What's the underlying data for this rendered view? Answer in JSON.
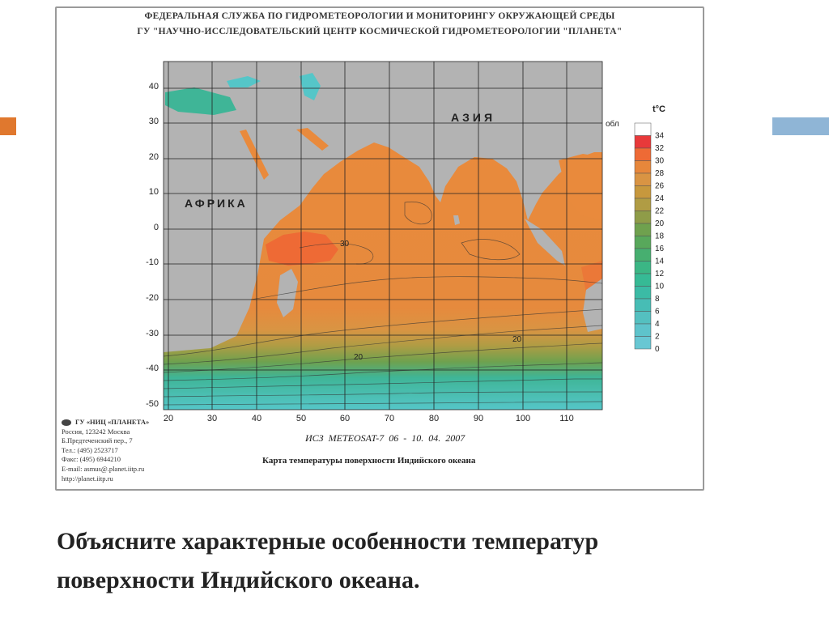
{
  "header": {
    "line1": "ФЕДЕРАЛЬНАЯ СЛУЖБА ПО ГИДРОМЕТЕОРОЛОГИИ И МОНИТОРИНГУ ОКРУЖАЮЩЕЙ СРЕДЫ",
    "line2": "ГУ \"НАУЧНО-ИССЛЕДОВАТЕЛЬСКИЙ ЦЕНТР КОСМИЧЕСКОЙ ГИДРОМЕТЕОРОЛОГИИ \"ПЛАНЕТА\""
  },
  "map": {
    "lat_labels": [
      "40",
      "30",
      "20",
      "10",
      "0",
      "-10",
      "-20",
      "-30",
      "-40",
      "-50"
    ],
    "lon_labels": [
      "20",
      "30",
      "40",
      "50",
      "60",
      "70",
      "80",
      "90",
      "100",
      "110"
    ],
    "continent_labels": {
      "africa": "АФРИКА",
      "asia": "АЗИЯ"
    },
    "contour_labels": [
      "30",
      "20",
      "20"
    ],
    "colors": {
      "land": "#b3b3b3",
      "warm": "#e98a3c",
      "hot": "#ee6a35",
      "mid": "#93a04a",
      "cool": "#3fb597",
      "cold": "#55c6c8"
    }
  },
  "legend": {
    "title": "t°C",
    "cloud_label": "обл",
    "ticks": [
      "34",
      "32",
      "30",
      "28",
      "26",
      "24",
      "22",
      "20",
      "18",
      "16",
      "14",
      "12",
      "10",
      "8",
      "6",
      "4",
      "2",
      "0"
    ],
    "colors": [
      "#ffffff",
      "#e8393a",
      "#ee6a35",
      "#e7873b",
      "#d99443",
      "#c7983d",
      "#b09c44",
      "#8f9c48",
      "#6fa14e",
      "#58a85b",
      "#47af70",
      "#3bb685",
      "#36ba95",
      "#3bbba5",
      "#47bdb5",
      "#54c0c0",
      "#5ec3cb",
      "#68c7d3"
    ]
  },
  "credits": {
    "org": "ГУ «НИЦ «ПЛАНЕТА»",
    "lines": [
      "Россия, 123242 Москва",
      "Б.Предтеченский пер., 7",
      "Тел.: (495) 2523717",
      "Факс: (495) 6944210",
      "E-mail: asmus@.planet.iitp.ru",
      "http://planet.iitp.ru"
    ]
  },
  "satellite": "ИСЗ METEOSAT-7    06 - 10. 04. 2007",
  "caption": "Карта температуры поверхности Индийского океана",
  "question": {
    "line1": "Объясните характерные особенности температур",
    "line2": "поверхности Индийского океана."
  }
}
